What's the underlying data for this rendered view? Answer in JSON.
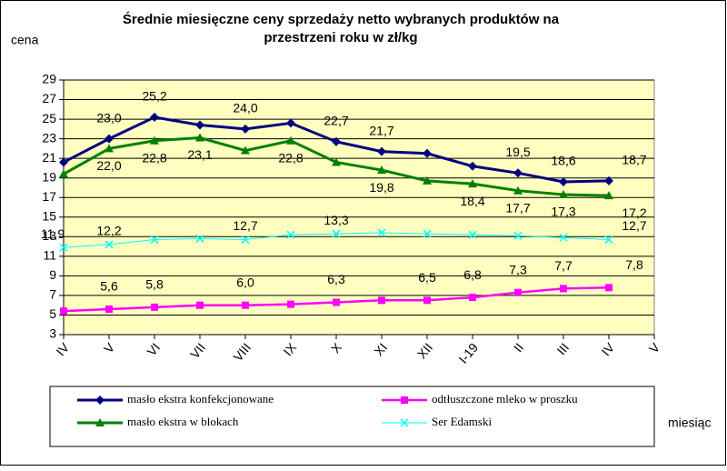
{
  "chart_data": {
    "type": "line",
    "title": [
      "Średnie miesięczne ceny sprzedaży netto  wybranych produktów na",
      "przestrzeni roku w zł/kg"
    ],
    "y_label": "cena",
    "x_label": "miesiąc",
    "categories": [
      "IV",
      "V",
      "VI",
      "VII",
      "VIII",
      "IX",
      "X",
      "XI",
      "XII",
      "I-19",
      "II",
      "III",
      "IV",
      "V"
    ],
    "ylim": [
      3,
      29
    ],
    "yticks": [
      3,
      5,
      7,
      9,
      11,
      13,
      15,
      17,
      19,
      21,
      23,
      25,
      27,
      29
    ],
    "grid": true,
    "series": [
      {
        "name": "masło ekstra konfekcjonowane",
        "color": "#000080",
        "marker": "diamond",
        "values": [
          20.6,
          23.0,
          25.2,
          24.4,
          24.0,
          24.6,
          22.7,
          21.7,
          21.5,
          20.2,
          19.5,
          18.6,
          18.7,
          null
        ],
        "value_labels": [
          null,
          "23,0",
          "25,2",
          null,
          "24,0",
          null,
          "22,7",
          "21,7",
          null,
          null,
          "19,5",
          "18,6",
          "18,7",
          null
        ]
      },
      {
        "name": "odtłuszczone mleko w proszku",
        "color": "#ff00ff",
        "marker": "square",
        "values": [
          5.4,
          5.6,
          5.8,
          6.0,
          6.0,
          6.1,
          6.3,
          6.5,
          6.5,
          6.8,
          7.3,
          7.7,
          7.8,
          null
        ],
        "value_labels": [
          null,
          "5,6",
          "5,8",
          null,
          "6,0",
          null,
          "6,3",
          null,
          "6,5",
          "6,8",
          "7,3",
          "7,7",
          "7,8",
          null
        ]
      },
      {
        "name": "masło ekstra w blokach",
        "color": "#008000",
        "marker": "triangle",
        "values": [
          19.4,
          22.0,
          22.8,
          23.1,
          21.8,
          22.8,
          20.6,
          19.8,
          18.7,
          18.4,
          17.7,
          17.3,
          17.2,
          null
        ],
        "value_labels": [
          null,
          "22,0",
          "22,8",
          "23,1",
          null,
          "22,8",
          null,
          "19,8",
          null,
          "18,4",
          "17,7",
          "17,3",
          "17,2",
          null
        ]
      },
      {
        "name": "Ser Edamski",
        "color": "#00ffff",
        "marker": "x",
        "values": [
          11.9,
          12.2,
          12.7,
          12.8,
          12.7,
          13.2,
          13.3,
          13.4,
          13.3,
          13.2,
          13.1,
          12.9,
          12.7,
          null
        ],
        "value_labels": [
          "11,9",
          "12,2",
          null,
          null,
          "12,7",
          null,
          "13,3",
          null,
          null,
          null,
          null,
          null,
          "12,7",
          null
        ]
      }
    ]
  }
}
